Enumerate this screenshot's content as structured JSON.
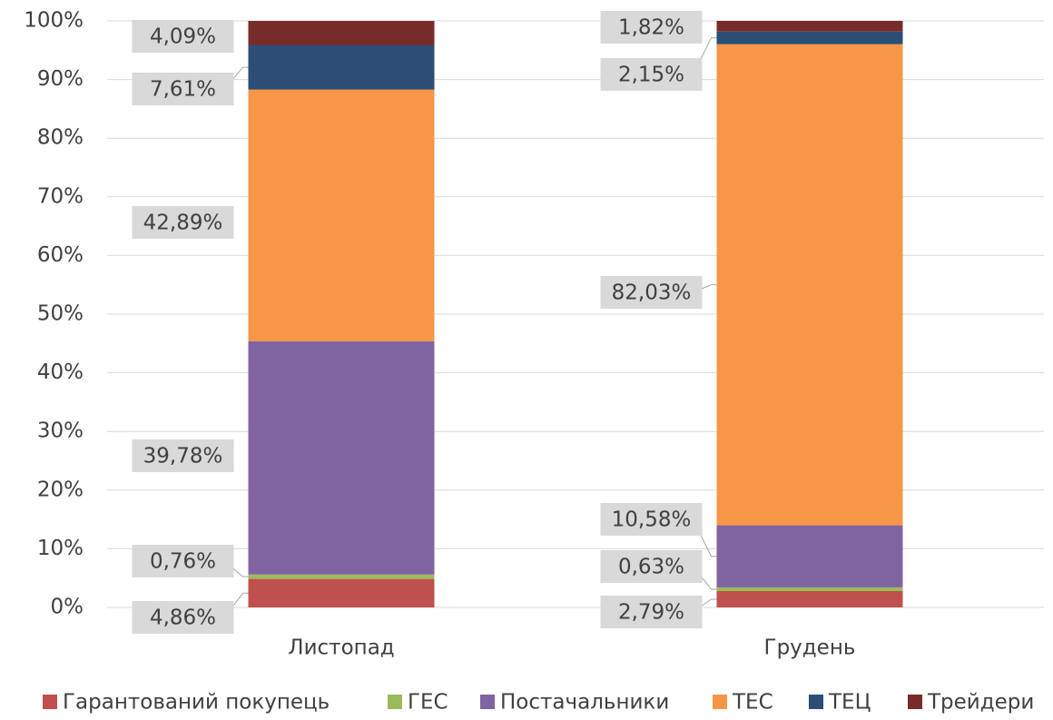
{
  "chart_data": {
    "type": "stacked-bar-100",
    "categories": [
      "Листопад",
      "Грудень"
    ],
    "series": [
      {
        "name": "Гарантований покупець",
        "color": "#c0504d",
        "values": [
          4.86,
          2.79
        ],
        "value_labels": [
          "4,86%",
          "2,79%"
        ]
      },
      {
        "name": "ГЕС",
        "color": "#9bbb59",
        "values": [
          0.76,
          0.63
        ],
        "value_labels": [
          "0,76%",
          "0,63%"
        ]
      },
      {
        "name": "Постачальники",
        "color": "#8064a2",
        "values": [
          39.78,
          10.58
        ],
        "value_labels": [
          "39,78%",
          "10,58%"
        ]
      },
      {
        "name": "ТЕС",
        "color": "#f79646",
        "values": [
          42.89,
          82.03
        ],
        "value_labels": [
          "42,89%",
          "82,03%"
        ]
      },
      {
        "name": "ТЕЦ",
        "color": "#2c4d75",
        "values": [
          7.61,
          2.15
        ],
        "value_labels": [
          "7,61%",
          "2,15%"
        ]
      },
      {
        "name": "Трейдери",
        "color": "#772c2a",
        "values": [
          4.09,
          1.82
        ],
        "value_labels": [
          "4,09%",
          "1,82%"
        ]
      }
    ],
    "ylim": [
      0,
      100
    ],
    "yticks": [
      {
        "value": 0,
        "label": "0%"
      },
      {
        "value": 10,
        "label": "10%"
      },
      {
        "value": 20,
        "label": "20%"
      },
      {
        "value": 30,
        "label": "30%"
      },
      {
        "value": 40,
        "label": "40%"
      },
      {
        "value": 50,
        "label": "50%"
      },
      {
        "value": 60,
        "label": "60%"
      },
      {
        "value": 70,
        "label": "70%"
      },
      {
        "value": 80,
        "label": "80%"
      },
      {
        "value": 90,
        "label": "90%"
      },
      {
        "value": 100,
        "label": "100%"
      }
    ],
    "grid": true,
    "legend": "bottom"
  }
}
